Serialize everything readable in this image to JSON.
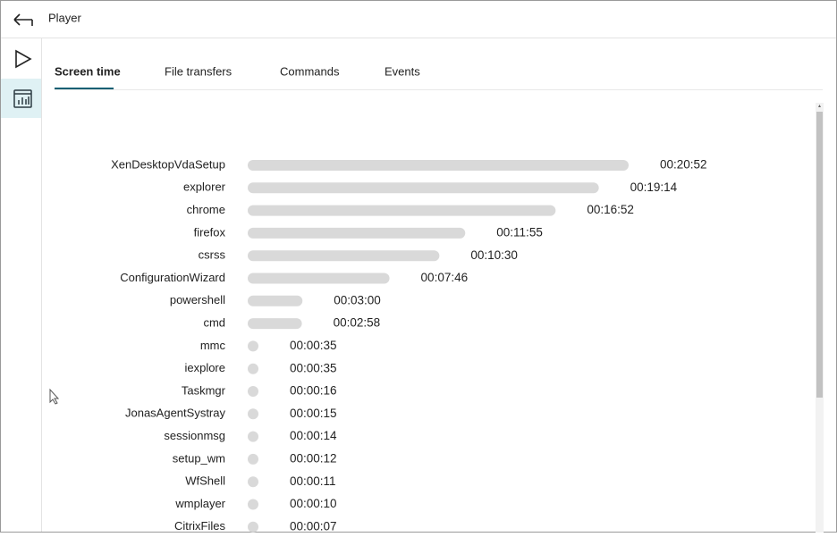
{
  "header": {
    "title": "Player"
  },
  "tabs": [
    "Screen time",
    "File transfers",
    "Commands",
    "Events"
  ],
  "chart_data": {
    "type": "bar",
    "orientation": "horizontal",
    "color": "#d9d9d9",
    "categories": [
      "XenDesktopVdaSetup",
      "explorer",
      "chrome",
      "firefox",
      "csrss",
      "ConfigurationWizard",
      "powershell",
      "cmd",
      "mmc",
      "iexplore",
      "Taskmgr",
      "JonasAgentSystray",
      "sessionmsg",
      "setup_wm",
      "WfShell",
      "wmplayer",
      "CitrixFiles"
    ],
    "values": [
      1252,
      1154,
      1012,
      715,
      630,
      466,
      180,
      178,
      35,
      35,
      16,
      15,
      14,
      12,
      11,
      10,
      7
    ],
    "value_labels": [
      "00:20:52",
      "00:19:14",
      "00:16:52",
      "00:11:55",
      "00:10:30",
      "00:07:46",
      "00:03:00",
      "00:02:58",
      "00:00:35",
      "00:00:35",
      "00:00:16",
      "00:00:15",
      "00:00:14",
      "00:00:12",
      "00:00:11",
      "00:00:10",
      "00:00:07"
    ]
  }
}
